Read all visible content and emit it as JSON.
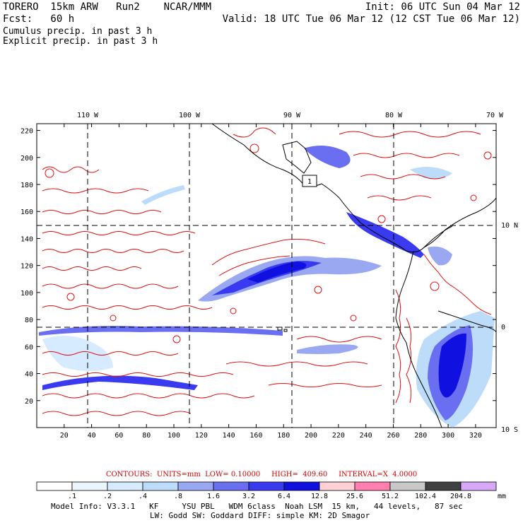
{
  "header": {
    "model_line": "TORERO  15km ARW   Run2    NCAR/MMM",
    "init": "Init: 06 UTC Sun 04 Mar 12",
    "forecast": "Fcst:   60 h",
    "valid": "Valid: 18 UTC Tue 06 Mar 12 (12 CST Tue 06 Mar 12)",
    "field1": "Cumulus precip. in past 3 h",
    "field2": "Explicit precip. in past 3 h"
  },
  "colors": {
    "field1": "#1a1aa8",
    "field2": "#e02020",
    "contour": "#e01010",
    "grid": "#000000"
  },
  "map": {
    "lon_labels": [
      "110 W",
      "100 W",
      "90 W",
      "80 W",
      "70 W"
    ],
    "lat_labels": [
      "10 N",
      "0",
      "10 S"
    ],
    "x_ticks": [
      "20",
      "40",
      "60",
      "80",
      "100",
      "120",
      "140",
      "160",
      "180",
      "200",
      "220",
      "240",
      "260",
      "280",
      "300",
      "320"
    ],
    "y_ticks": [
      "20",
      "40",
      "60",
      "80",
      "100",
      "120",
      "140",
      "160",
      "180",
      "200",
      "220"
    ],
    "box_label": "1"
  },
  "contours_info": "CONTOURS:  UNITS=mm  LOW= 0.10000     HIGH=  409.60     INTERVAL=X  4.0000",
  "legend": {
    "labels": [
      ".1",
      ".2",
      ".4",
      ".8",
      "1.6",
      "3.2",
      "6.4",
      "12.8",
      "25.6",
      "51.2",
      "102.4",
      "204.8"
    ],
    "unit": "mm",
    "colors": [
      "#ffffff",
      "#ecf5ff",
      "#d6ebff",
      "#bcdcfa",
      "#9aa8f2",
      "#6a6ef0",
      "#3a3af0",
      "#1010e0",
      "#ffd0d6",
      "#ff7fb0",
      "#c8c8c8",
      "#404040",
      "#d8a8f8"
    ]
  },
  "model_info": {
    "line1": "Model Info: V3.3.1   KF     YSU PBL   WDM 6class  Noah LSM  15 km,   44 levels,   87 sec",
    "line2": "LW: Godd SW: Goddard DIFF: simple KM: 2D Smagor"
  }
}
